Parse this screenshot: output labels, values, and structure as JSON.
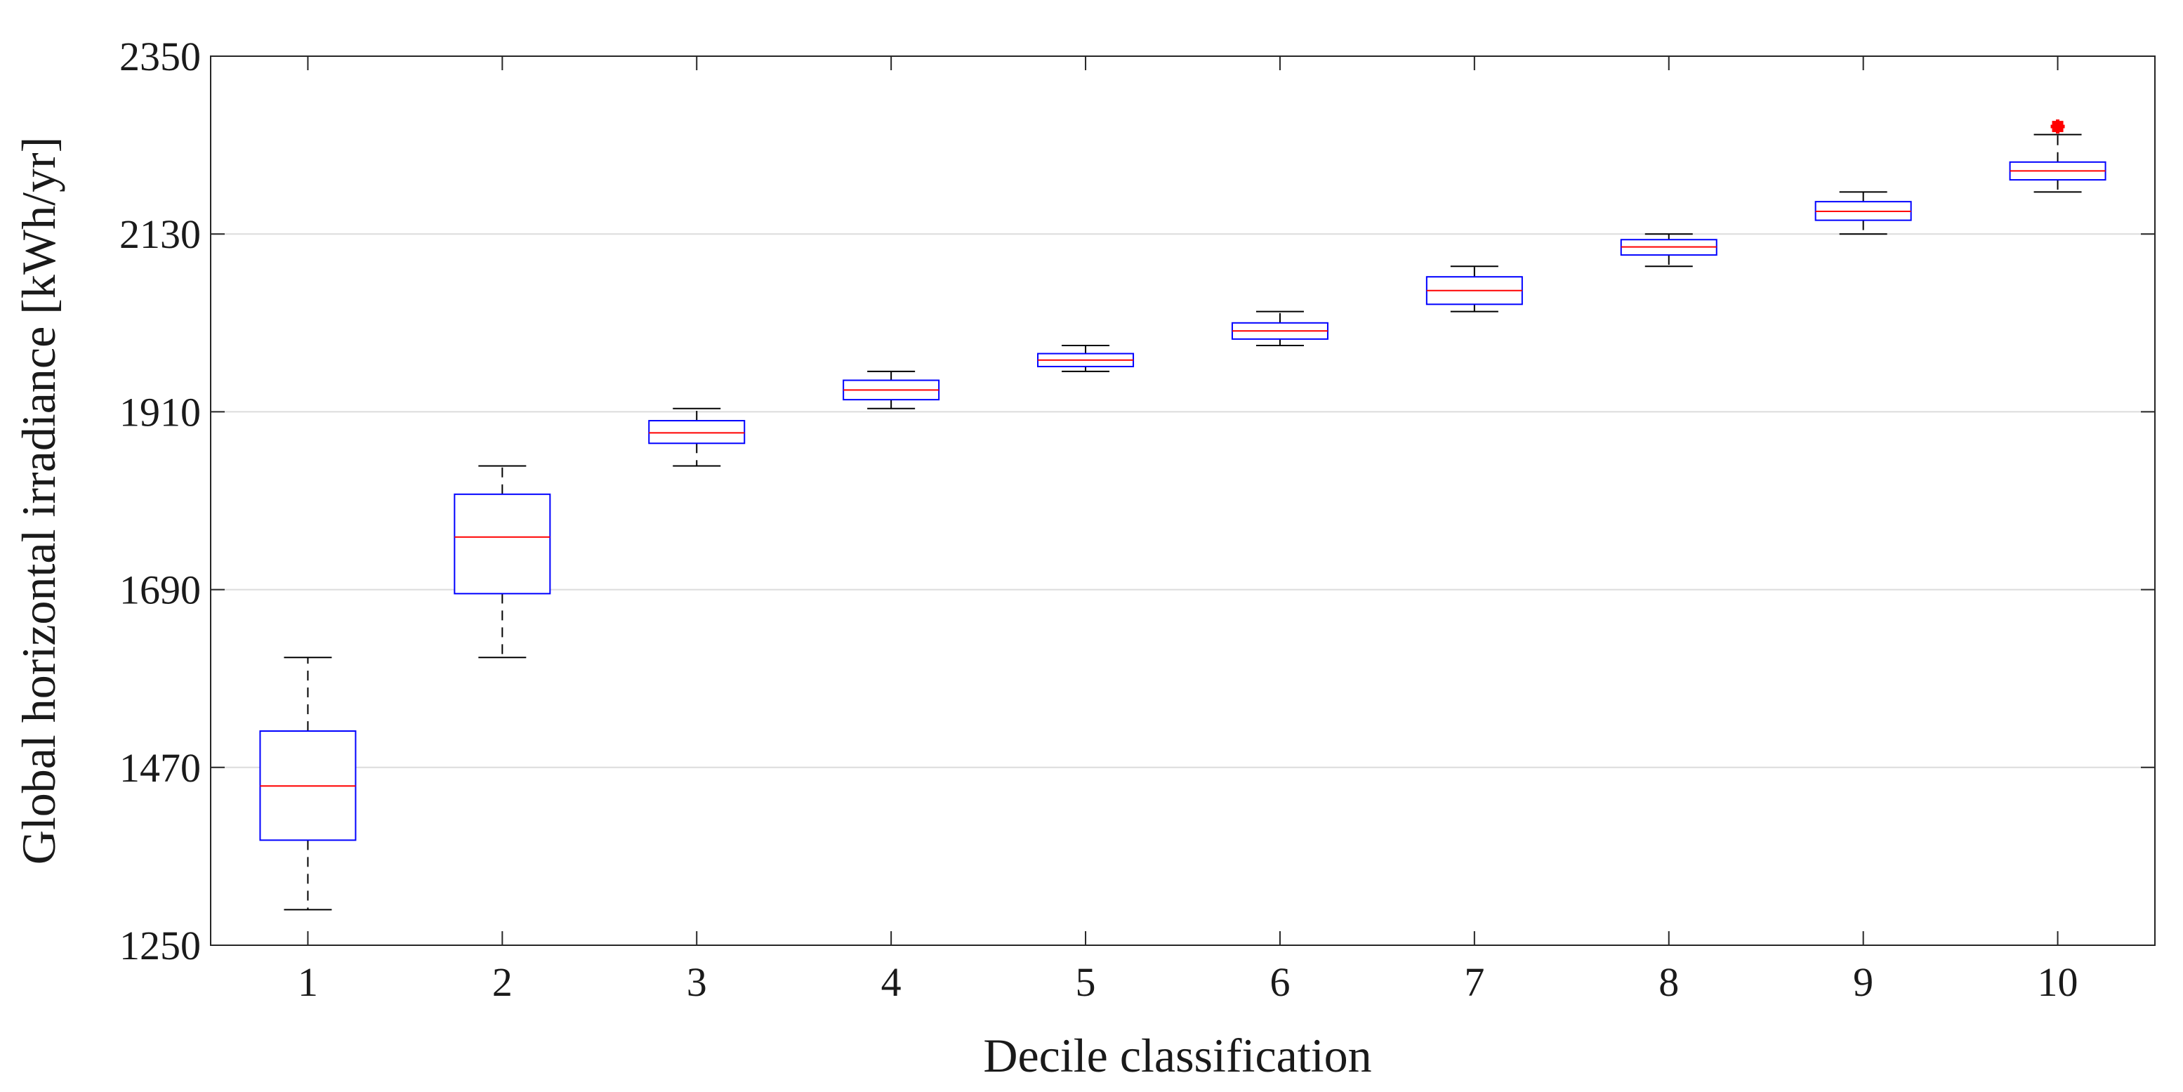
{
  "chart_data": {
    "type": "box",
    "title": "",
    "xlabel": "Decile classification",
    "ylabel": "Global horizontal irradiance [kWh/yr]",
    "ylim": [
      1250,
      2350
    ],
    "yticks": [
      1250,
      1470,
      1690,
      1910,
      2130,
      2350
    ],
    "ytick_labels": [
      "1250",
      "1470",
      "1690",
      "1910",
      "2130",
      "2350"
    ],
    "grid_y": true,
    "categories": [
      "1",
      "2",
      "3",
      "4",
      "5",
      "6",
      "7",
      "8",
      "9",
      "10"
    ],
    "boxes": [
      {
        "category": "1",
        "whisker_low": 1294,
        "q1": 1380,
        "median": 1447,
        "q3": 1515,
        "whisker_high": 1606,
        "outliers": []
      },
      {
        "category": "2",
        "whisker_low": 1606,
        "q1": 1685,
        "median": 1755,
        "q3": 1808,
        "whisker_high": 1843,
        "outliers": []
      },
      {
        "category": "3",
        "whisker_low": 1843,
        "q1": 1871,
        "median": 1884,
        "q3": 1899,
        "whisker_high": 1914,
        "outliers": []
      },
      {
        "category": "4",
        "whisker_low": 1914,
        "q1": 1925,
        "median": 1937,
        "q3": 1949,
        "whisker_high": 1960,
        "outliers": []
      },
      {
        "category": "5",
        "whisker_low": 1960,
        "q1": 1966,
        "median": 1974,
        "q3": 1982,
        "whisker_high": 1992,
        "outliers": []
      },
      {
        "category": "6",
        "whisker_low": 1992,
        "q1": 2000,
        "median": 2010,
        "q3": 2020,
        "whisker_high": 2034,
        "outliers": []
      },
      {
        "category": "7",
        "whisker_low": 2034,
        "q1": 2043,
        "median": 2060,
        "q3": 2077,
        "whisker_high": 2090,
        "outliers": []
      },
      {
        "category": "8",
        "whisker_low": 2090,
        "q1": 2104,
        "median": 2114,
        "q3": 2123,
        "whisker_high": 2130,
        "outliers": []
      },
      {
        "category": "9",
        "whisker_low": 2130,
        "q1": 2147,
        "median": 2158,
        "q3": 2170,
        "whisker_high": 2182,
        "outliers": []
      },
      {
        "category": "10",
        "whisker_low": 2182,
        "q1": 2197,
        "median": 2208,
        "q3": 2219,
        "whisker_high": 2253,
        "outliers": [
          2263
        ]
      }
    ],
    "colors": {
      "box": "#0000ff",
      "median": "#ff0000",
      "whisker": "#000000",
      "outlier": "#ff0000",
      "grid": "#dcdcdc",
      "axis": "#262626"
    }
  }
}
